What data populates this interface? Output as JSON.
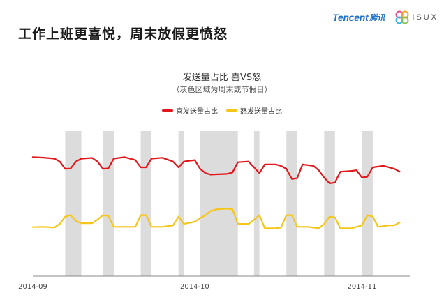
{
  "slide": {
    "title": "工作上班更喜悦，周末放假更愤怒"
  },
  "logo": {
    "brand_en": "Tencent",
    "brand_cn": "腾讯",
    "partner": "ISUX"
  },
  "colors": {
    "joy": "#e3161b",
    "anger": "#f5c518",
    "weekend_band": "#dcdcdc",
    "axis": "#888888"
  },
  "chart_data": {
    "type": "line",
    "title": "发送量占比  喜VS怒",
    "subtitle": "（灰色区域为周末或节假日）",
    "legend_position": "top-center",
    "grid": false,
    "y_axis_visible": false,
    "x_tick_labels": [
      "2014-09",
      "2014-10",
      "2014-11"
    ],
    "x_tick_days": [
      0,
      30,
      61
    ],
    "x_range": [
      0,
      70
    ],
    "y_range": [
      0,
      100
    ],
    "highlight_bands_label": "灰色区域为周末或节假日",
    "highlight_bands_days": [
      [
        6,
        9
      ],
      [
        13,
        15
      ],
      [
        20,
        22
      ],
      [
        27,
        28
      ],
      [
        31,
        38
      ],
      [
        41,
        42
      ],
      [
        47,
        49
      ],
      [
        54,
        56
      ],
      [
        61,
        63
      ]
    ],
    "series": [
      {
        "name": "喜发送量占比",
        "color": "#e3161b",
        "values": [
          [
            0,
            82
          ],
          [
            2,
            81.7
          ],
          [
            4,
            81
          ],
          [
            5,
            79
          ],
          [
            6,
            74
          ],
          [
            7,
            74.2
          ],
          [
            8,
            79
          ],
          [
            9,
            81
          ],
          [
            11,
            81.5
          ],
          [
            12,
            79
          ],
          [
            13,
            74
          ],
          [
            14,
            74.3
          ],
          [
            15,
            81
          ],
          [
            17,
            82
          ],
          [
            19,
            80
          ],
          [
            20,
            75
          ],
          [
            21,
            75
          ],
          [
            22,
            81
          ],
          [
            24,
            81.6
          ],
          [
            26,
            79
          ],
          [
            27,
            75
          ],
          [
            28,
            79
          ],
          [
            30,
            80
          ],
          [
            31,
            74
          ],
          [
            32,
            71
          ],
          [
            33,
            70
          ],
          [
            34,
            70.2
          ],
          [
            36,
            70.5
          ],
          [
            37,
            71.5
          ],
          [
            38,
            78.5
          ],
          [
            40,
            79
          ],
          [
            41,
            75
          ],
          [
            42,
            71
          ],
          [
            43,
            77
          ],
          [
            45,
            77
          ],
          [
            46,
            76
          ],
          [
            47,
            74
          ],
          [
            48,
            67
          ],
          [
            49,
            67.5
          ],
          [
            50,
            77
          ],
          [
            52,
            76
          ],
          [
            53,
            73
          ],
          [
            54,
            68
          ],
          [
            55,
            64
          ],
          [
            56,
            64.5
          ],
          [
            57,
            72
          ],
          [
            59,
            72.5
          ],
          [
            60,
            73
          ],
          [
            61,
            68
          ],
          [
            62,
            68.5
          ],
          [
            63,
            75
          ],
          [
            65,
            76
          ],
          [
            67,
            74
          ],
          [
            68,
            72
          ]
        ]
      },
      {
        "name": "怒发送量占比",
        "color": "#f5c518",
        "values": [
          [
            0,
            33.8
          ],
          [
            2,
            34
          ],
          [
            4,
            33.5
          ],
          [
            5,
            36
          ],
          [
            6,
            41
          ],
          [
            7,
            42
          ],
          [
            8,
            38
          ],
          [
            9,
            36.5
          ],
          [
            11,
            36.5
          ],
          [
            12,
            39
          ],
          [
            13,
            42
          ],
          [
            14,
            41.5
          ],
          [
            15,
            34
          ],
          [
            17,
            34
          ],
          [
            19,
            34
          ],
          [
            20,
            42
          ],
          [
            21,
            42
          ],
          [
            22,
            34
          ],
          [
            24,
            34
          ],
          [
            26,
            35
          ],
          [
            27,
            41
          ],
          [
            28,
            36
          ],
          [
            30,
            37.5
          ],
          [
            31,
            40
          ],
          [
            32,
            42
          ],
          [
            33,
            45
          ],
          [
            34,
            46
          ],
          [
            36,
            46.5
          ],
          [
            37,
            46
          ],
          [
            38,
            36
          ],
          [
            40,
            36
          ],
          [
            41,
            39
          ],
          [
            42,
            42
          ],
          [
            43,
            33
          ],
          [
            45,
            33
          ],
          [
            46,
            33.5
          ],
          [
            47,
            42
          ],
          [
            48,
            42
          ],
          [
            49,
            34
          ],
          [
            51,
            34
          ],
          [
            53,
            33
          ],
          [
            54,
            36
          ],
          [
            55,
            41
          ],
          [
            56,
            40.5
          ],
          [
            57,
            33
          ],
          [
            59,
            33
          ],
          [
            61,
            35
          ],
          [
            62,
            42
          ],
          [
            63,
            41
          ],
          [
            64,
            34
          ],
          [
            66,
            35
          ],
          [
            67,
            35
          ],
          [
            68,
            37
          ]
        ]
      }
    ]
  }
}
